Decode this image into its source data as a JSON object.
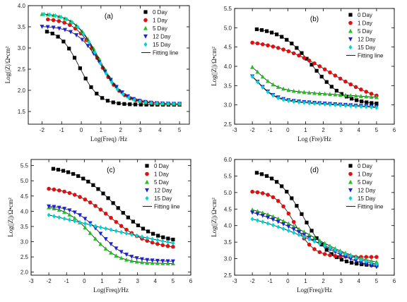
{
  "figure": {
    "background": "#ffffff"
  },
  "series_style": [
    {
      "name": "0 Day",
      "color": "#000000",
      "marker": "square"
    },
    {
      "name": "1 Day",
      "color": "#e01010",
      "marker": "circle"
    },
    {
      "name": "5 Day",
      "color": "#1fc01f",
      "marker": "triangle-up"
    },
    {
      "name": "12 Day",
      "color": "#1f1fe0",
      "marker": "triangle-down"
    },
    {
      "name": "15 Day",
      "color": "#00d4d4",
      "marker": "diamond"
    }
  ],
  "fit_label": "Fitting line",
  "fit_color": "#222222",
  "chart_data": [
    {
      "panel_label": "(a)",
      "type": "scatter",
      "xlabel": "Log(Freq) /Hz",
      "ylabel": "Log(|Z|/Ω•cm²",
      "xlim": [
        -2.7,
        5.5
      ],
      "ylim": [
        1.2,
        4.0
      ],
      "xticks": [
        -2,
        -1,
        0,
        1,
        2,
        3,
        4,
        5
      ],
      "yticks": [
        1.5,
        2.0,
        2.5,
        3.0,
        3.5,
        4.0
      ],
      "ytick_labels": [
        "1.5",
        "2.0",
        "2.5",
        "3.0",
        "3.5",
        "4.0"
      ],
      "legend_position": "top-right",
      "series": [
        {
          "name": "0 Day",
          "params": {
            "lo": 1.66,
            "hi": 3.45,
            "c": -0.1,
            "w": 0.5
          },
          "xstart": -1.75
        },
        {
          "name": "1 Day",
          "params": {
            "lo": 1.68,
            "hi": 3.7,
            "c": 0.9,
            "w": 0.6
          },
          "xstart": -1.7
        },
        {
          "name": "5 Day",
          "params": {
            "lo": 1.68,
            "hi": 3.82,
            "c": 0.9,
            "w": 0.62
          },
          "xstart": -2.0
        },
        {
          "name": "12 Day",
          "params": {
            "lo": 1.68,
            "hi": 3.52,
            "c": 1.0,
            "w": 0.62
          },
          "xstart": -2.0
        },
        {
          "name": "15 Day",
          "params": {
            "lo": 1.68,
            "hi": 3.82,
            "c": 0.85,
            "w": 0.6
          },
          "xstart": -1.9
        }
      ]
    },
    {
      "panel_label": "(b)",
      "type": "scatter",
      "xlabel": "Log (Fre)/Hz",
      "ylabel": "Log(|Z|)/Ω•cm²",
      "xlim": [
        -3,
        6
      ],
      "ylim": [
        2.5,
        5.5
      ],
      "xticks": [
        -3,
        -2,
        -1,
        0,
        1,
        2,
        3,
        4,
        5,
        6
      ],
      "yticks": [
        2.5,
        3.0,
        3.5,
        4.0,
        4.5,
        5.0,
        5.5
      ],
      "ytick_labels": [
        "2.5",
        "3.0",
        "3.5",
        "4.0",
        "4.5",
        "5.0",
        "5.5"
      ],
      "legend_position": "top-right",
      "series": [
        {
          "name": "0 Day",
          "params": {
            "lo": 3.0,
            "hi": 5.02,
            "c": 1.4,
            "w": 0.9
          },
          "xstart": -1.75
        },
        {
          "name": "1 Day",
          "params": {
            "lo": 2.95,
            "hi": 4.72,
            "c": 2.4,
            "w": 1.6
          },
          "xstart": -2.0
        },
        {
          "name": "5 Day",
          "params": {
            "lo": 3.35,
            "hi": 4.25,
            "c": -1.7,
            "w": 0.55,
            "s": -0.03
          },
          "xstart": -2.0
        },
        {
          "name": "12 Day",
          "params": {
            "lo": 3.1,
            "hi": 4.0,
            "c": -1.7,
            "w": 0.5,
            "s": -0.03
          },
          "xstart": -2.0
        },
        {
          "name": "15 Day",
          "params": {
            "lo": 3.08,
            "hi": 4.0,
            "c": -1.7,
            "w": 0.5,
            "s": -0.03
          },
          "xstart": -2.0
        }
      ]
    },
    {
      "panel_label": "(c)",
      "type": "scatter",
      "xlabel": "Log(Freq)/Hz",
      "ylabel": "Log(|Z|)/Ω•cm²",
      "xlim": [
        -3,
        6
      ],
      "ylim": [
        1.9,
        5.7
      ],
      "xticks": [
        -3,
        -2,
        -1,
        0,
        1,
        2,
        3,
        4,
        5,
        6
      ],
      "yticks": [
        2.0,
        2.5,
        3.0,
        3.5,
        4.0,
        4.5,
        5.0,
        5.5
      ],
      "ytick_labels": [
        "2.0",
        "2.5",
        "3.0",
        "3.5",
        "4.0",
        "4.5",
        "5.0",
        "5.5"
      ],
      "legend_position": "top-right",
      "series": [
        {
          "name": "0 Day",
          "params": {
            "lo": 2.95,
            "hi": 5.5,
            "c": 1.7,
            "w": 1.1
          },
          "xstart": -1.75
        },
        {
          "name": "1 Day",
          "params": {
            "lo": 2.75,
            "hi": 4.82,
            "c": 1.5,
            "w": 1.1
          },
          "xstart": -2.0
        },
        {
          "name": "5 Day",
          "params": {
            "lo": 2.28,
            "hi": 4.2,
            "c": 0.4,
            "w": 0.75
          },
          "xstart": -2.0
        },
        {
          "name": "12 Day",
          "params": {
            "lo": 2.35,
            "hi": 4.2,
            "c": 0.9,
            "w": 0.75
          },
          "xstart": -2.0
        },
        {
          "name": "15 Day",
          "params": {
            "lo": 2.2,
            "hi": 5.0,
            "c": 0.0,
            "w": 5.0
          },
          "xstart": -2.0
        }
      ]
    },
    {
      "panel_label": "(d)",
      "type": "scatter",
      "xlabel": "Log(Freq)/Hz",
      "ylabel": "Log(|Z|)/Ω•cm²",
      "xlim": [
        -3,
        6
      ],
      "ylim": [
        2.5,
        6.0
      ],
      "xticks": [
        -3,
        -2,
        -1,
        0,
        1,
        2,
        3,
        4,
        5,
        6
      ],
      "yticks": [
        2.5,
        3.0,
        3.5,
        4.0,
        4.5,
        5.0,
        5.5,
        6.0
      ],
      "ytick_labels": [
        "2.5",
        "3.0",
        "3.5",
        "4.0",
        "4.5",
        "5.0",
        "5.5",
        "6.0"
      ],
      "legend_position": "top-right",
      "series": [
        {
          "name": "0 Day",
          "params": {
            "lo": 2.78,
            "hi": 5.7,
            "c": 0.9,
            "w": 0.8
          },
          "xstart": -1.75
        },
        {
          "name": "1 Day",
          "params": {
            "lo": 3.05,
            "hi": 5.05,
            "c": 0.4,
            "w": 0.55
          },
          "xstart": -2.0
        },
        {
          "name": "5 Day",
          "params": {
            "lo": 2.7,
            "hi": 4.75,
            "c": 1.2,
            "w": 1.7
          },
          "xstart": -2.0
        },
        {
          "name": "12 Day",
          "params": {
            "lo": 2.5,
            "hi": 4.7,
            "c": 1.3,
            "w": 1.8
          },
          "xstart": -2.0
        },
        {
          "name": "15 Day",
          "params": {
            "lo": 2.4,
            "hi": 4.6,
            "c": 1.6,
            "w": 2.4
          },
          "xstart": -2.0
        }
      ]
    }
  ]
}
